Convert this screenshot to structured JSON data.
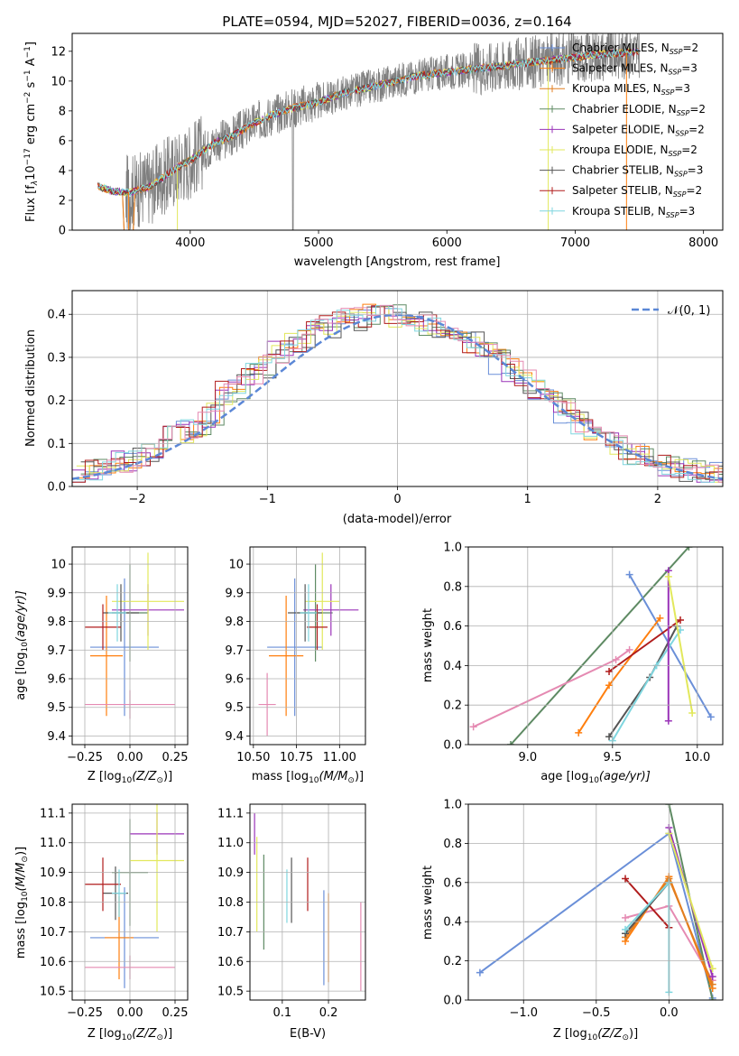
{
  "colors": {
    "Chabrier MILES": "#6a8fd8",
    "Salpeter MILES": "#ff7f0e",
    "Kroupa MILES": "#e07e21",
    "Chabrier ELODIE": "#5e8a63",
    "Salpeter ELODIE": "#9a33b8",
    "Kroupa ELODIE": "#e2e85c",
    "Chabrier STELIB": "#555555",
    "Salpeter STELIB": "#b01c1c",
    "Kroupa STELIB": "#7fd6df",
    "extra": "#e58ab2",
    "data": "#7f7f7f",
    "gauss": "#5b87d6",
    "grid": "#b0b0b0"
  },
  "chart_data": [
    {
      "id": "spectrum",
      "type": "line",
      "title": "PLATE=0594, MJD=52027, FIBERID=0036, z=0.164",
      "xlabel": "wavelength [Angstrom, rest frame]",
      "ylabel": "Flux [f",
      "ylabel_rest": "10",
      "ylabel_tail": " erg cm",
      "ylabel_units": " s",
      "ylabel_a": " A",
      "xlim": [
        3080,
        8150
      ],
      "ylim": [
        0,
        13.2
      ],
      "xticks": [
        4000,
        5000,
        6000,
        7000,
        8000
      ],
      "yticks": [
        0,
        2,
        4,
        6,
        8,
        10,
        12
      ],
      "continuum": [
        [
          3280,
          3.0
        ],
        [
          3300,
          2.9
        ],
        [
          3400,
          2.6
        ],
        [
          3500,
          2.5
        ],
        [
          3600,
          2.7
        ],
        [
          3700,
          3.0
        ],
        [
          3800,
          3.6
        ],
        [
          3900,
          4.2
        ],
        [
          4000,
          4.7
        ],
        [
          4100,
          5.3
        ],
        [
          4200,
          5.9
        ],
        [
          4300,
          6.2
        ],
        [
          4400,
          6.7
        ],
        [
          4500,
          7.2
        ],
        [
          4600,
          7.6
        ],
        [
          4700,
          7.9
        ],
        [
          4800,
          8.2
        ],
        [
          4900,
          8.4
        ],
        [
          5000,
          8.6
        ],
        [
          5100,
          8.9
        ],
        [
          5200,
          9.2
        ],
        [
          5300,
          9.4
        ],
        [
          5400,
          9.6
        ],
        [
          5500,
          9.8
        ],
        [
          5600,
          10.0
        ],
        [
          5700,
          10.2
        ],
        [
          5800,
          10.4
        ],
        [
          5900,
          10.5
        ],
        [
          6000,
          10.6
        ],
        [
          6200,
          10.8
        ],
        [
          6400,
          11.0
        ],
        [
          6600,
          11.2
        ],
        [
          6800,
          11.4
        ],
        [
          7000,
          11.6
        ],
        [
          7200,
          11.8
        ],
        [
          7400,
          11.9
        ],
        [
          7500,
          12.0
        ]
      ],
      "legend": [
        {
          "name": "Chabrier MILES",
          "pre": "Chabrier MILES, N",
          "sub": "SSP",
          "post": "=2"
        },
        {
          "name": "Salpeter MILES",
          "pre": "Salpeter MILES, N",
          "sub": "SSP",
          "post": "=3"
        },
        {
          "name": "Kroupa MILES",
          "pre": "Kroupa MILES, N",
          "sub": "SSP",
          "post": "=3"
        },
        {
          "name": "Chabrier ELODIE",
          "pre": "Chabrier ELODIE, N",
          "sub": "SSP",
          "post": "=2"
        },
        {
          "name": "Salpeter ELODIE",
          "pre": "Salpeter ELODIE, N",
          "sub": "SSP",
          "post": "=2"
        },
        {
          "name": "Kroupa ELODIE",
          "pre": "Kroupa ELODIE, N",
          "sub": "SSP",
          "post": "=2"
        },
        {
          "name": "Chabrier STELIB",
          "pre": "Chabrier STELIB, N",
          "sub": "SSP",
          "post": "=3"
        },
        {
          "name": "Salpeter STELIB",
          "pre": "Salpeter STELIB, N",
          "sub": "SSP",
          "post": "=2"
        },
        {
          "name": "Kroupa STELIB",
          "pre": "Kroupa STELIB, N",
          "sub": "SSP",
          "post": "=3"
        }
      ]
    },
    {
      "id": "residuals",
      "type": "line",
      "xlabel": "(data-model)/error",
      "ylabel": "Normed distribution",
      "xlim": [
        -2.5,
        2.5
      ],
      "ylim": [
        0,
        0.455
      ],
      "xticks": [
        -2,
        -1,
        0,
        1,
        2
      ],
      "xticklabels": [
        "−2",
        "−1",
        "0",
        "1",
        "2"
      ],
      "yticks": [
        0.0,
        0.1,
        0.2,
        0.3,
        0.4
      ],
      "yticklabels": [
        "0.0",
        "0.1",
        "0.2",
        "0.3",
        "0.4"
      ],
      "gauss_label": "𝒩(0, 1)",
      "base_hist": [
        0.03,
        0.035,
        0.045,
        0.055,
        0.065,
        0.075,
        0.09,
        0.14,
        0.125,
        0.145,
        0.165,
        0.215,
        0.23,
        0.26,
        0.28,
        0.31,
        0.33,
        0.335,
        0.36,
        0.37,
        0.385,
        0.39,
        0.395,
        0.4,
        0.395,
        0.38,
        0.38,
        0.37,
        0.36,
        0.35,
        0.34,
        0.32,
        0.29,
        0.27,
        0.245,
        0.225,
        0.2,
        0.175,
        0.15,
        0.13,
        0.11,
        0.095,
        0.08,
        0.07,
        0.06,
        0.05,
        0.04,
        0.035,
        0.03,
        0.03
      ]
    },
    {
      "id": "age-vs-Z",
      "type": "scatter",
      "xlabel": "Z [log",
      "ylabel": "age  [log",
      "xlim": [
        -0.32,
        0.32
      ],
      "ylim": [
        9.37,
        10.06
      ],
      "xticks": [
        -0.25,
        0.0,
        0.25
      ],
      "xticklabels": [
        "−0.25",
        "0.00",
        "0.25"
      ],
      "yticks": [
        9.4,
        9.5,
        9.6,
        9.7,
        9.8,
        9.9,
        10.0
      ],
      "points": [
        {
          "c": "Chabrier MILES",
          "x": -0.03,
          "y": 9.71,
          "xe": 0.19,
          "ye": 0.24
        },
        {
          "c": "Salpeter MILES",
          "x": -0.13,
          "y": 9.68,
          "xe": 0.09,
          "ye": 0.21
        },
        {
          "c": "Chabrier ELODIE",
          "x": 0.0,
          "y": 9.83,
          "xe": 0.1,
          "ye": 0.17
        },
        {
          "c": "Salpeter ELODIE",
          "x": 0.1,
          "y": 9.84,
          "xe": 0.2,
          "ye": 0.09
        },
        {
          "c": "Kroupa ELODIE",
          "x": 0.1,
          "y": 9.87,
          "xe": 0.2,
          "ye": 0.17
        },
        {
          "c": "Chabrier STELIB",
          "x": -0.05,
          "y": 9.83,
          "xe": 0.1,
          "ye": 0.1
        },
        {
          "c": "Salpeter STELIB",
          "x": -0.15,
          "y": 9.78,
          "xe": 0.1,
          "ye": 0.08
        },
        {
          "c": "Kroupa STELIB",
          "x": -0.07,
          "y": 9.83,
          "xe": 0.05,
          "ye": 0.1
        },
        {
          "c": "extra",
          "x": 0.0,
          "y": 9.51,
          "xe": 0.25,
          "ye": 0.05
        }
      ]
    },
    {
      "id": "age-vs-mass",
      "type": "scatter",
      "xlabel": "mass [log",
      "xlim": [
        10.48,
        11.15
      ],
      "ylim": [
        9.37,
        10.06
      ],
      "xticks": [
        10.5,
        10.75,
        11.0
      ],
      "xticklabels": [
        "10.50",
        "10.75",
        "11.00"
      ],
      "yticks": [
        9.4,
        9.5,
        9.6,
        9.7,
        9.8,
        9.9,
        10.0
      ],
      "points": [
        {
          "c": "Chabrier MILES",
          "x": 10.74,
          "y": 9.71,
          "xe": 0.16,
          "ye": 0.24
        },
        {
          "c": "Salpeter MILES",
          "x": 10.69,
          "y": 9.68,
          "xe": 0.1,
          "ye": 0.21
        },
        {
          "c": "Chabrier ELODIE",
          "x": 10.86,
          "y": 9.83,
          "xe": 0.1,
          "ye": 0.17
        },
        {
          "c": "Salpeter ELODIE",
          "x": 10.95,
          "y": 9.84,
          "xe": 0.16,
          "ye": 0.09
        },
        {
          "c": "Kroupa ELODIE",
          "x": 10.9,
          "y": 9.87,
          "xe": 0.1,
          "ye": 0.17
        },
        {
          "c": "Chabrier STELIB",
          "x": 10.8,
          "y": 9.83,
          "xe": 0.1,
          "ye": 0.1
        },
        {
          "c": "Salpeter STELIB",
          "x": 10.87,
          "y": 9.78,
          "xe": 0.06,
          "ye": 0.08
        },
        {
          "c": "Kroupa STELIB",
          "x": 10.82,
          "y": 9.83,
          "xe": 0.05,
          "ye": 0.1
        },
        {
          "c": "extra",
          "x": 10.58,
          "y": 9.51,
          "xe": 0.05,
          "ye": 0.11
        }
      ]
    },
    {
      "id": "mass-weight-vs-age",
      "type": "line",
      "xlabel": "age  [log",
      "ylabel": "mass weight",
      "xlim": [
        8.65,
        10.15
      ],
      "ylim": [
        0,
        1
      ],
      "xticks": [
        9.0,
        9.5,
        10.0
      ],
      "xticklabels": [
        "9.0",
        "9.5",
        "10.0"
      ],
      "yticks": [
        0.0,
        0.2,
        0.4,
        0.6,
        0.8,
        1.0
      ],
      "yticklabels": [
        "0.0",
        "0.2",
        "0.4",
        "0.6",
        "0.8",
        "1.0"
      ],
      "series": [
        {
          "c": "Chabrier ELODIE",
          "x": [
            8.9,
            9.95
          ],
          "y": [
            0.0,
            1.0
          ]
        },
        {
          "c": "extra",
          "x": [
            8.68,
            9.52,
            9.6
          ],
          "y": [
            0.09,
            0.43,
            0.48
          ]
        },
        {
          "c": "Chabrier MILES",
          "x": [
            9.6,
            10.08
          ],
          "y": [
            0.86,
            0.14
          ]
        },
        {
          "c": "Salpeter MILES",
          "x": [
            9.3,
            9.48,
            9.78
          ],
          "y": [
            0.06,
            0.3,
            0.64
          ]
        },
        {
          "c": "Salpeter STELIB",
          "x": [
            9.48,
            9.9
          ],
          "y": [
            0.37,
            0.63
          ]
        },
        {
          "c": "Chabrier STELIB",
          "x": [
            9.48,
            9.72,
            9.88
          ],
          "y": [
            0.04,
            0.34,
            0.6
          ]
        },
        {
          "c": "Kroupa STELIB",
          "x": [
            9.5,
            9.76,
            9.9
          ],
          "y": [
            0.02,
            0.4,
            0.58
          ]
        },
        {
          "c": "Salpeter ELODIE",
          "x": [
            9.83,
            9.83
          ],
          "y": [
            0.12,
            0.88
          ]
        },
        {
          "c": "Kroupa ELODIE",
          "x": [
            9.83,
            9.97
          ],
          "y": [
            0.85,
            0.16
          ]
        }
      ]
    },
    {
      "id": "mass-vs-Z",
      "type": "scatter",
      "xlabel": "Z [log",
      "ylabel": "mass [log",
      "xlim": [
        -0.32,
        0.32
      ],
      "ylim": [
        10.47,
        11.13
      ],
      "xticks": [
        -0.25,
        0.0,
        0.25
      ],
      "xticklabels": [
        "−0.25",
        "0.00",
        "0.25"
      ],
      "yticks": [
        10.5,
        10.6,
        10.7,
        10.8,
        10.9,
        11.0,
        11.1
      ],
      "yticklabels": [
        "10.5",
        "10.6",
        "10.7",
        "10.8",
        "10.9",
        "11.0",
        "11.1"
      ],
      "points": [
        {
          "c": "Chabrier MILES",
          "x": -0.03,
          "y": 10.68,
          "xe": 0.19,
          "ye": 0.17
        },
        {
          "c": "Salpeter MILES",
          "x": -0.06,
          "y": 10.68,
          "xe": 0.08,
          "ye": 0.14
        },
        {
          "c": "Chabrier ELODIE",
          "x": 0.0,
          "y": 10.9,
          "xe": 0.1,
          "ye": 0.18
        },
        {
          "c": "Salpeter ELODIE",
          "x": 0.15,
          "y": 11.03,
          "xe": 0.15,
          "ye": 0.07
        },
        {
          "c": "Kroupa ELODIE",
          "x": 0.15,
          "y": 10.94,
          "xe": 0.15,
          "ye": 0.24
        },
        {
          "c": "Chabrier STELIB",
          "x": -0.08,
          "y": 10.83,
          "xe": 0.07,
          "ye": 0.09
        },
        {
          "c": "Salpeter STELIB",
          "x": -0.15,
          "y": 10.86,
          "xe": 0.1,
          "ye": 0.09
        },
        {
          "c": "Kroupa STELIB",
          "x": -0.06,
          "y": 10.83,
          "xe": 0.04,
          "ye": 0.08
        },
        {
          "c": "extra",
          "x": 0.0,
          "y": 10.58,
          "xe": 0.25,
          "ye": 0.04
        }
      ]
    },
    {
      "id": "mass-vs-ebv",
      "type": "scatter",
      "xlabel": "E(B-V)",
      "xlim": [
        0.03,
        0.28
      ],
      "ylim": [
        10.47,
        11.13
      ],
      "xticks": [
        0.1,
        0.2
      ],
      "xticklabels": [
        "0.1",
        "0.2"
      ],
      "yticks": [
        10.5,
        10.6,
        10.7,
        10.8,
        10.9,
        11.0,
        11.1
      ],
      "yticklabels": [
        "10.5",
        "10.6",
        "10.7",
        "10.8",
        "10.9",
        "11.0",
        "11.1"
      ],
      "points": [
        {
          "c": "Salpeter ELODIE",
          "x": 0.04,
          "y": 11.03,
          "xe": 0,
          "ye": 0.07
        },
        {
          "c": "Kroupa ELODIE",
          "x": 0.045,
          "y": 10.86,
          "xe": 0,
          "ye": 0.16
        },
        {
          "c": "Chabrier ELODIE",
          "x": 0.06,
          "y": 10.8,
          "xe": 0,
          "ye": 0.16
        },
        {
          "c": "Kroupa STELIB",
          "x": 0.11,
          "y": 10.82,
          "xe": 0,
          "ye": 0.09
        },
        {
          "c": "Chabrier STELIB",
          "x": 0.12,
          "y": 10.84,
          "xe": 0,
          "ye": 0.11
        },
        {
          "c": "Salpeter STELIB",
          "x": 0.155,
          "y": 10.86,
          "xe": 0,
          "ye": 0.09
        },
        {
          "c": "Chabrier MILES",
          "x": 0.19,
          "y": 10.68,
          "xe": 0,
          "ye": 0.16
        },
        {
          "c": "Salpeter MILES",
          "x": 0.2,
          "y": 10.68,
          "xe": 0,
          "ye": 0.15
        },
        {
          "c": "extra",
          "x": 0.27,
          "y": 10.65,
          "xe": 0,
          "ye": 0.15
        }
      ]
    },
    {
      "id": "mass-weight-vs-Z",
      "type": "line",
      "xlabel": "Z [log",
      "ylabel": "mass weight",
      "xlim": [
        -1.38,
        0.37
      ],
      "ylim": [
        0,
        1
      ],
      "xticks": [
        -1.0,
        -0.5,
        0.0
      ],
      "xticklabels": [
        "−1.0",
        "−0.5",
        "0.0"
      ],
      "yticks": [
        0.0,
        0.2,
        0.4,
        0.6,
        0.8,
        1.0
      ],
      "yticklabels": [
        "0.0",
        "0.2",
        "0.4",
        "0.6",
        "0.8",
        "1.0"
      ],
      "series": [
        {
          "c": "Chabrier MILES",
          "x": [
            -1.3,
            0.0,
            0.3
          ],
          "y": [
            0.14,
            0.85,
            0.01
          ]
        },
        {
          "c": "Chabrier ELODIE",
          "x": [
            0.0,
            0.3
          ],
          "y": [
            1.0,
            0.0
          ]
        },
        {
          "c": "extra",
          "x": [
            -0.3,
            0.0,
            0.3
          ],
          "y": [
            0.42,
            0.48,
            0.1
          ]
        },
        {
          "c": "Salpeter MILES",
          "x": [
            -0.3,
            0.0,
            0.3
          ],
          "y": [
            0.3,
            0.63,
            0.06
          ]
        },
        {
          "c": "Kroupa MILES",
          "x": [
            -0.3,
            0.0,
            0.3
          ],
          "y": [
            0.32,
            0.62,
            0.08
          ]
        },
        {
          "c": "Salpeter STELIB",
          "x": [
            -0.3,
            0.0
          ],
          "y": [
            0.62,
            0.37
          ]
        },
        {
          "c": "Chabrier STELIB",
          "x": [
            -0.3,
            0.0
          ],
          "y": [
            0.34,
            0.6
          ]
        },
        {
          "c": "Kroupa STELIB",
          "x": [
            -0.3,
            0.0,
            0.0
          ],
          "y": [
            0.36,
            0.6,
            0.04
          ]
        },
        {
          "c": "Salpeter ELODIE",
          "x": [
            0.0,
            0.3
          ],
          "y": [
            0.88,
            0.12
          ]
        },
        {
          "c": "Kroupa ELODIE",
          "x": [
            0.0,
            0.3
          ],
          "y": [
            0.85,
            0.16
          ]
        }
      ]
    }
  ],
  "axis_text": {
    "lambda_sym": "λ",
    "flux_exp": "−17",
    "cm_exp": "−2",
    "s_exp": "−1",
    "a_exp": "−1",
    "bracket": "]",
    "zsun": "(Z/Z",
    "odot": "⊙",
    "close": ")]",
    "agefn": "(age/yr)]",
    "mfn": "(M/M",
    "sub10": "10"
  }
}
